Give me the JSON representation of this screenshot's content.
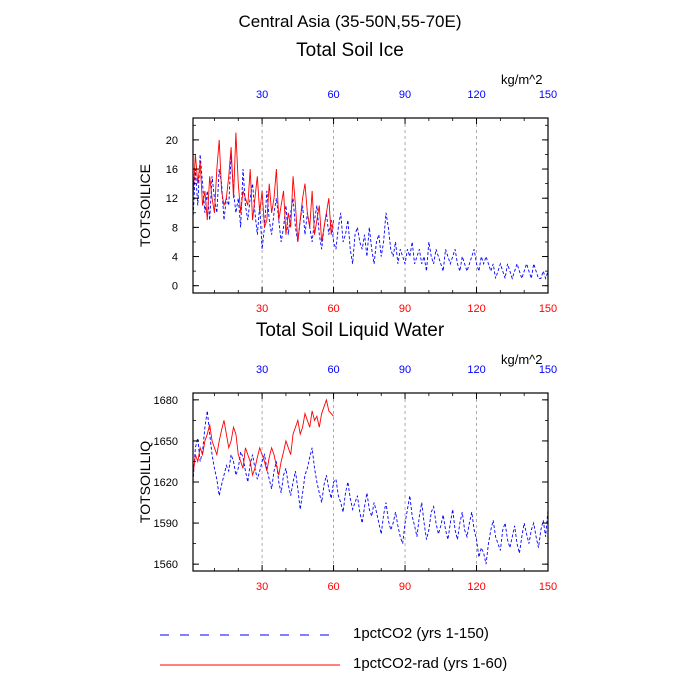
{
  "figure_title": "Central Asia (35-50N,55-70E)",
  "legend": [
    {
      "label": "1pctCO2 (yrs 1-150)",
      "color": "#0000ff",
      "dash": "dashed"
    },
    {
      "label": "1pctCO2-rad (yrs 1-60)",
      "color": "#ff0000",
      "dash": "solid"
    }
  ],
  "colors": {
    "bottom_ticks": "#ff0000",
    "top_ticks": "#0000ff",
    "grid": "#999999"
  },
  "chart_data": [
    {
      "type": "line",
      "title": "Total Soil Ice",
      "ylabel": "TOTSOILICE",
      "units": "kg/m^2",
      "xlim": [
        1,
        150
      ],
      "ylim": [
        -1,
        23
      ],
      "yticks": [
        0,
        4,
        8,
        12,
        16,
        20
      ],
      "xticks_bottom": [
        30,
        60,
        90,
        120,
        150
      ],
      "xticks_top": [
        30,
        60,
        90,
        120,
        150
      ],
      "grid_x": [
        30,
        60,
        90,
        120
      ],
      "series": [
        {
          "name": "1pctCO2 (yrs 1-150)",
          "color": "#0000ff",
          "dash": "dashed",
          "x_start": 1,
          "values": [
            9,
            16,
            11,
            18,
            14,
            10,
            13,
            9,
            15,
            12,
            10,
            16,
            14,
            9,
            12,
            11,
            18,
            13,
            10,
            12,
            8,
            16,
            11,
            9,
            12,
            14,
            10,
            7,
            11,
            5,
            8,
            13,
            9,
            7,
            10,
            12,
            9,
            6,
            8,
            11,
            7,
            10,
            12,
            8,
            6,
            9,
            11,
            7,
            10,
            8,
            6,
            9,
            11,
            7,
            5,
            8,
            10,
            7,
            9,
            6,
            5,
            8,
            10,
            6,
            7,
            9,
            5,
            3,
            7,
            8,
            6,
            5,
            7,
            4,
            8,
            5,
            3,
            6,
            7,
            4,
            6,
            10,
            8,
            5,
            4,
            6,
            3,
            5,
            4,
            3,
            5,
            4,
            6,
            3,
            4,
            5,
            3,
            4,
            2,
            6,
            4,
            3,
            5,
            4,
            3,
            2,
            5,
            4,
            3,
            4,
            5,
            3,
            2,
            4,
            3,
            2,
            3,
            4,
            5,
            3,
            2,
            4,
            3,
            4,
            3,
            2,
            3,
            1,
            2,
            3,
            2,
            1,
            3,
            2,
            1,
            2,
            3,
            2,
            1,
            2,
            3,
            2,
            1,
            3,
            2,
            1,
            1,
            2,
            1,
            2
          ]
        },
        {
          "name": "1pctCO2-rad (yrs 1-60)",
          "color": "#ff0000",
          "dash": "solid",
          "x_start": 1,
          "values": [
            12,
            18,
            14,
            17,
            11,
            13,
            9,
            15,
            12,
            10,
            16,
            20,
            13,
            11,
            12,
            15,
            19,
            12,
            21,
            14,
            10,
            13,
            12,
            11,
            16,
            9,
            12,
            15,
            10,
            13,
            8,
            9,
            14,
            10,
            12,
            16,
            9,
            11,
            13,
            7,
            10,
            8,
            15,
            11,
            6,
            9,
            12,
            14,
            10,
            8,
            13,
            7,
            9,
            11,
            6,
            8,
            10,
            12,
            7,
            9
          ]
        }
      ]
    },
    {
      "type": "line",
      "title": "Total Soil Liquid Water",
      "ylabel": "TOTSOILLIQ",
      "units": "kg/m^2",
      "xlim": [
        1,
        150
      ],
      "ylim": [
        1555,
        1685
      ],
      "yticks": [
        1560,
        1590,
        1620,
        1650,
        1680
      ],
      "xticks_bottom": [
        30,
        60,
        90,
        120,
        150
      ],
      "xticks_top": [
        30,
        60,
        90,
        120,
        150
      ],
      "grid_x": [
        30,
        60,
        90,
        120
      ],
      "series": [
        {
          "name": "1pctCO2 (yrs 1-150)",
          "color": "#0000ff",
          "dash": "dashed",
          "x_start": 1,
          "values": [
            1620,
            1645,
            1652,
            1635,
            1642,
            1660,
            1672,
            1655,
            1640,
            1630,
            1622,
            1610,
            1618,
            1625,
            1632,
            1628,
            1640,
            1635,
            1625,
            1630,
            1642,
            1638,
            1628,
            1620,
            1633,
            1640,
            1630,
            1622,
            1628,
            1635,
            1640,
            1630,
            1622,
            1615,
            1628,
            1635,
            1620,
            1612,
            1625,
            1630,
            1618,
            1610,
            1620,
            1628,
            1615,
            1600,
            1612,
            1625,
            1630,
            1638,
            1645,
            1630,
            1620,
            1612,
            1605,
            1618,
            1625,
            1615,
            1608,
            1620,
            1622,
            1610,
            1605,
            1598,
            1612,
            1620,
            1608,
            1600,
            1605,
            1610,
            1598,
            1590,
            1602,
            1612,
            1600,
            1595,
            1605,
            1598,
            1590,
            1582,
            1596,
            1605,
            1592,
            1585,
            1590,
            1598,
            1588,
            1580,
            1575,
            1590,
            1600,
            1610,
            1595,
            1588,
            1580,
            1595,
            1605,
            1590,
            1578,
            1585,
            1598,
            1602,
            1590,
            1582,
            1588,
            1596,
            1585,
            1578,
            1590,
            1600,
            1585,
            1578,
            1590,
            1598,
            1585,
            1580,
            1590,
            1598,
            1585,
            1578,
            1565,
            1572,
            1568,
            1560,
            1575,
            1585,
            1592,
            1580,
            1575,
            1570,
            1585,
            1590,
            1578,
            1572,
            1580,
            1588,
            1575,
            1568,
            1580,
            1590,
            1582,
            1575,
            1585,
            1590,
            1580,
            1572,
            1585,
            1592,
            1580,
            1600
          ]
        },
        {
          "name": "1pctCO2-rad (yrs 1-60)",
          "color": "#ff0000",
          "dash": "solid",
          "x_start": 1,
          "values": [
            1625,
            1640,
            1635,
            1645,
            1640,
            1650,
            1655,
            1662,
            1650,
            1645,
            1640,
            1650,
            1658,
            1665,
            1655,
            1645,
            1650,
            1660,
            1655,
            1640,
            1635,
            1630,
            1645,
            1640,
            1635,
            1625,
            1630,
            1638,
            1645,
            1640,
            1635,
            1628,
            1638,
            1645,
            1640,
            1632,
            1625,
            1635,
            1642,
            1650,
            1645,
            1640,
            1655,
            1660,
            1665,
            1655,
            1660,
            1670,
            1665,
            1660,
            1672,
            1665,
            1668,
            1660,
            1670,
            1675,
            1680,
            1672,
            1670,
            1668
          ]
        }
      ]
    }
  ]
}
